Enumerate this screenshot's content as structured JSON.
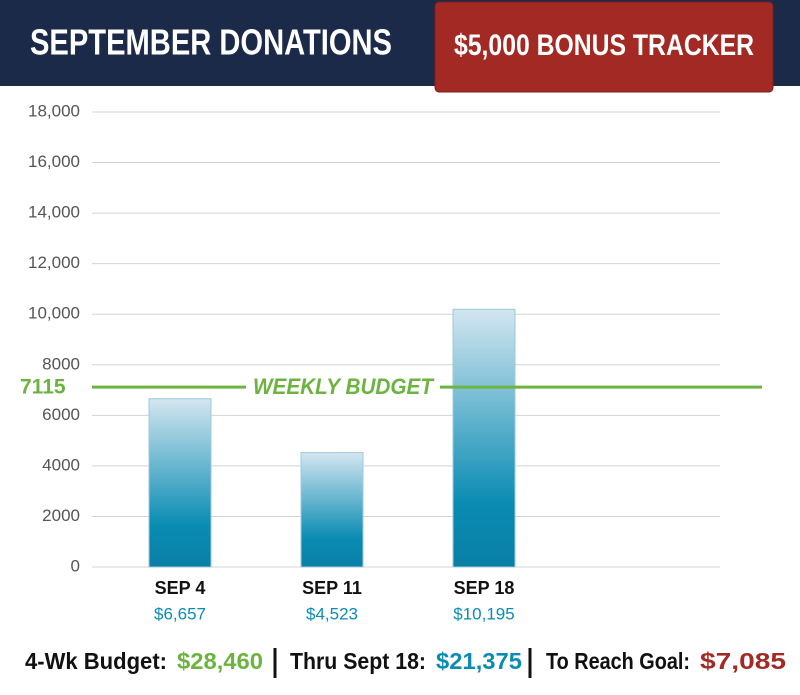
{
  "chart_data": {
    "type": "bar",
    "title": "SEPTEMBER DONATIONS",
    "badge": "$5,000 BONUS TRACKER",
    "categories": [
      "SEP 4",
      "SEP 11",
      "SEP 18"
    ],
    "values": [
      6657,
      4523,
      10195
    ],
    "value_labels": [
      "$6,657",
      "$4,523",
      "$10,195"
    ],
    "color": "#0a8cb3",
    "ylim": [
      0,
      18000
    ],
    "yticks": [
      0,
      2000,
      4000,
      6000,
      8000,
      {
        "value": 10000,
        "label": "10,000"
      },
      {
        "value": 12000,
        "label": "12,000"
      },
      {
        "value": 14000,
        "label": "14,000"
      },
      {
        "value": 16000,
        "label": "16,000"
      },
      {
        "value": 18000,
        "label": "18,000"
      }
    ],
    "grid": true,
    "budget_line": {
      "value": 7115,
      "label": "WEEKLY BUDGET",
      "color": "#6cb33f"
    },
    "footer": [
      {
        "label": "4-Wk Budget:",
        "value": "$28,460",
        "color": "#6cb33f"
      },
      {
        "label": "Thru Sept 18:",
        "value": "$21,375",
        "color": "#0a8cb3"
      },
      {
        "label": "To Reach Goal:",
        "value": "$7,085",
        "color": "#a32a24"
      }
    ]
  }
}
